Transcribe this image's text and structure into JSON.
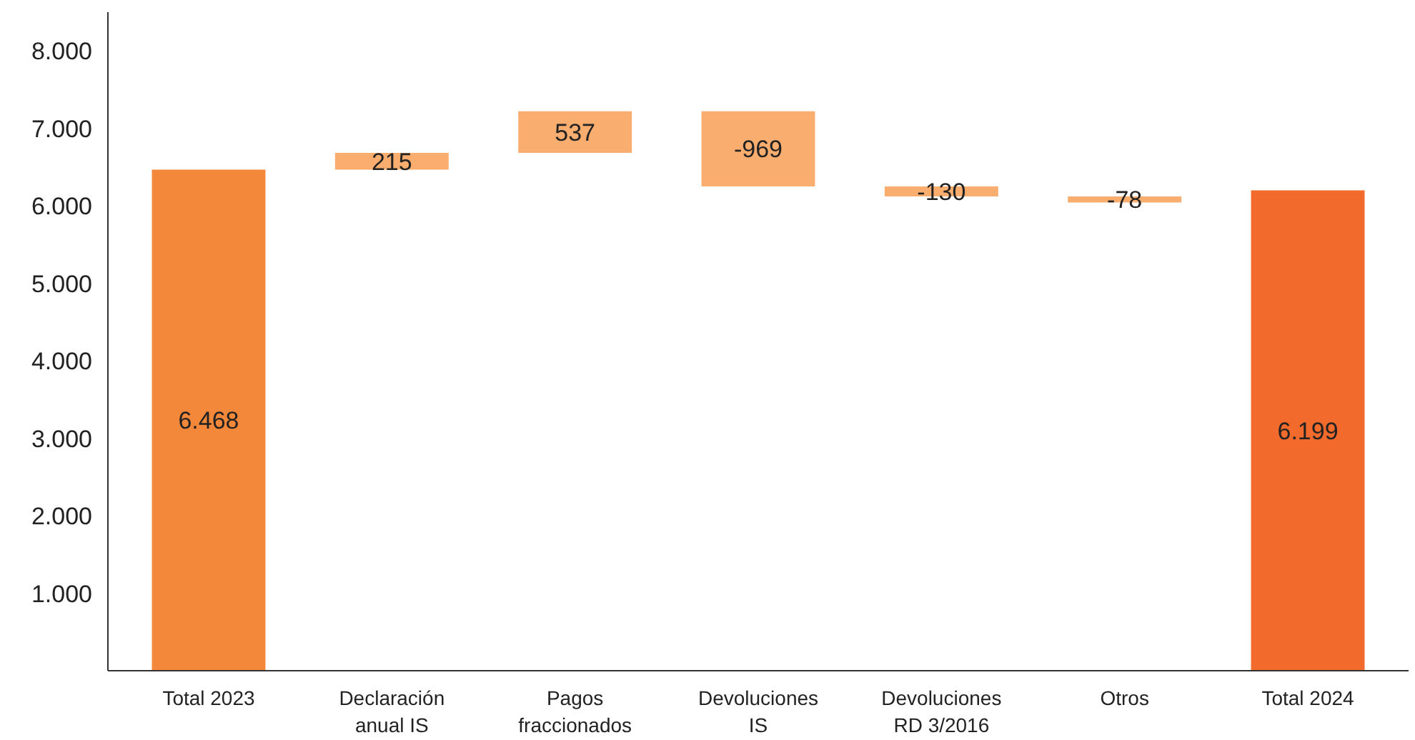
{
  "chart_data": {
    "type": "bar",
    "categories": [
      "Total 2023",
      "Declaración\nanual IS",
      "Pagos\nfraccionados",
      "Devoluciones\nIS",
      "Devoluciones\nRD 3/2016",
      "Otros",
      "Total 2024"
    ],
    "values": [
      6468,
      215,
      537,
      -969,
      -130,
      -78,
      6199
    ],
    "base": [
      0,
      6468,
      6683,
      7220,
      6251,
      6121,
      0
    ],
    "colors": [
      "#f4883a",
      "#f9ad6f",
      "#f9ad6f",
      "#f9ad6f",
      "#f9ad6f",
      "#f9ad6f",
      "#f26a2c"
    ],
    "value_labels": [
      "6.468",
      "215",
      "537",
      "-969",
      "-130",
      "-78",
      "6.199"
    ],
    "ylim": [
      0,
      8500
    ],
    "yticks": [
      {
        "value": 1000,
        "label": "1.000"
      },
      {
        "value": 2000,
        "label": "2.000"
      },
      {
        "value": 3000,
        "label": "3.000"
      },
      {
        "value": 4000,
        "label": "4.000"
      },
      {
        "value": 5000,
        "label": "5.000"
      },
      {
        "value": 6000,
        "label": "6.000"
      },
      {
        "value": 7000,
        "label": "7.000"
      },
      {
        "value": 8000,
        "label": "8.000"
      }
    ],
    "grid": false
  }
}
